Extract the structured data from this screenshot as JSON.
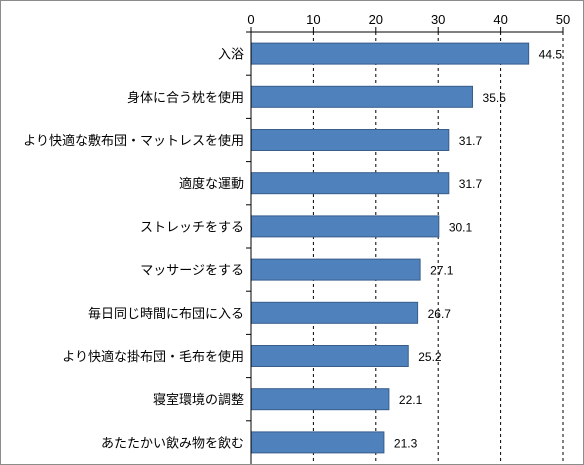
{
  "chart_data": {
    "type": "bar",
    "orientation": "horizontal",
    "categories": [
      "入浴",
      "身体に合う枕を使用",
      "より快適な敷布団・マットレスを使用",
      "適度な運動",
      "ストレッチをする",
      "マッサージをする",
      "毎日同じ時間に布団に入る",
      "より快適な掛布団・毛布を使用",
      "寝室環境の調整",
      "あたたかい飲み物を飲む"
    ],
    "values": [
      44.5,
      35.5,
      31.7,
      31.7,
      30.1,
      27.1,
      26.7,
      25.2,
      22.1,
      21.3
    ],
    "value_labels": [
      "44.5",
      "35.5",
      "31.7",
      "31.7",
      "30.1",
      "27.1",
      "26.7",
      "25.2",
      "22.1",
      "21.3"
    ],
    "xlim": [
      0,
      50
    ],
    "x_ticks": [
      "0",
      "10",
      "20",
      "30",
      "40",
      "50"
    ],
    "x_axis_position": "top",
    "grid": "vertical dashed",
    "legend": "none",
    "bar_color": "#4f81bd",
    "bar_edge_color": "#385d8a"
  }
}
